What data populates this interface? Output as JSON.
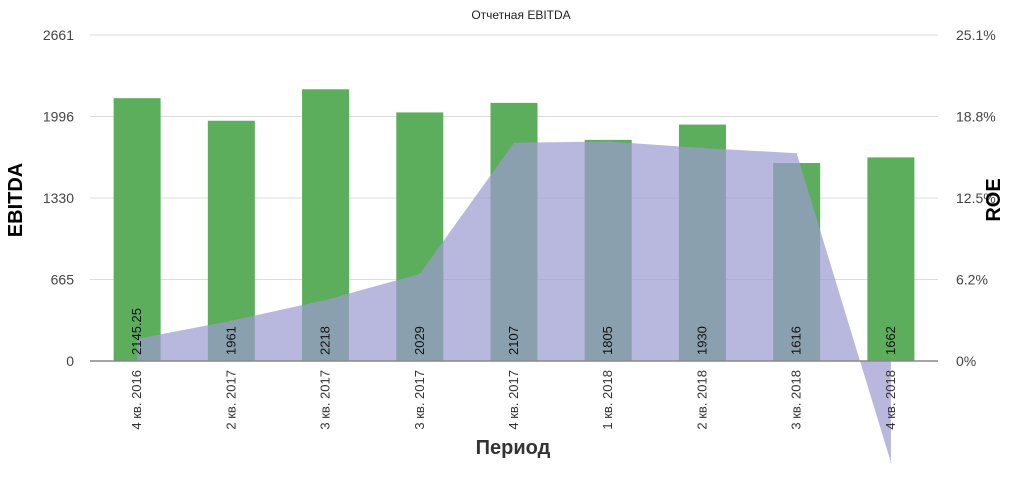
{
  "chart_data": {
    "type": "bar",
    "title": "Отчетная EBITDA",
    "xlabel": "Период",
    "ylabel": "EBITDA",
    "y2label": "ROE",
    "categories": [
      "4 кв. 2016",
      "2 кв. 2017",
      "3 кв. 2017",
      "3 кв. 2017",
      "4 кв. 2017",
      "1 кв. 2018",
      "2 кв. 2018",
      "3 кв. 2018",
      "4 кв. 2018"
    ],
    "series": [
      {
        "name": "EBITDA",
        "type": "bar",
        "axis": "left",
        "color": "#5cad5c",
        "values": [
          2145.25,
          1961,
          2218,
          2029,
          2107,
          1805,
          1930,
          1616,
          1662
        ],
        "labels": [
          "2145.25",
          "1961",
          "2218",
          "2029",
          "2107",
          "1805",
          "1930",
          "1616",
          "1662"
        ]
      },
      {
        "name": "ROE",
        "type": "area",
        "axis": "right",
        "color": "#9d9bd0",
        "values": [
          1.7,
          3.1,
          4.7,
          6.7,
          16.8,
          16.9,
          16.4,
          16.0,
          -7.8
        ]
      }
    ],
    "ylim": [
      0,
      2661
    ],
    "yticks": [
      "0",
      "665",
      "1330",
      "1996",
      "2661"
    ],
    "y2lim": [
      0,
      25.1
    ],
    "y2ticks": [
      "0%",
      "6.2%",
      "12.5%",
      "18.8%",
      "25.1%"
    ],
    "grid": true,
    "legend": "none"
  }
}
